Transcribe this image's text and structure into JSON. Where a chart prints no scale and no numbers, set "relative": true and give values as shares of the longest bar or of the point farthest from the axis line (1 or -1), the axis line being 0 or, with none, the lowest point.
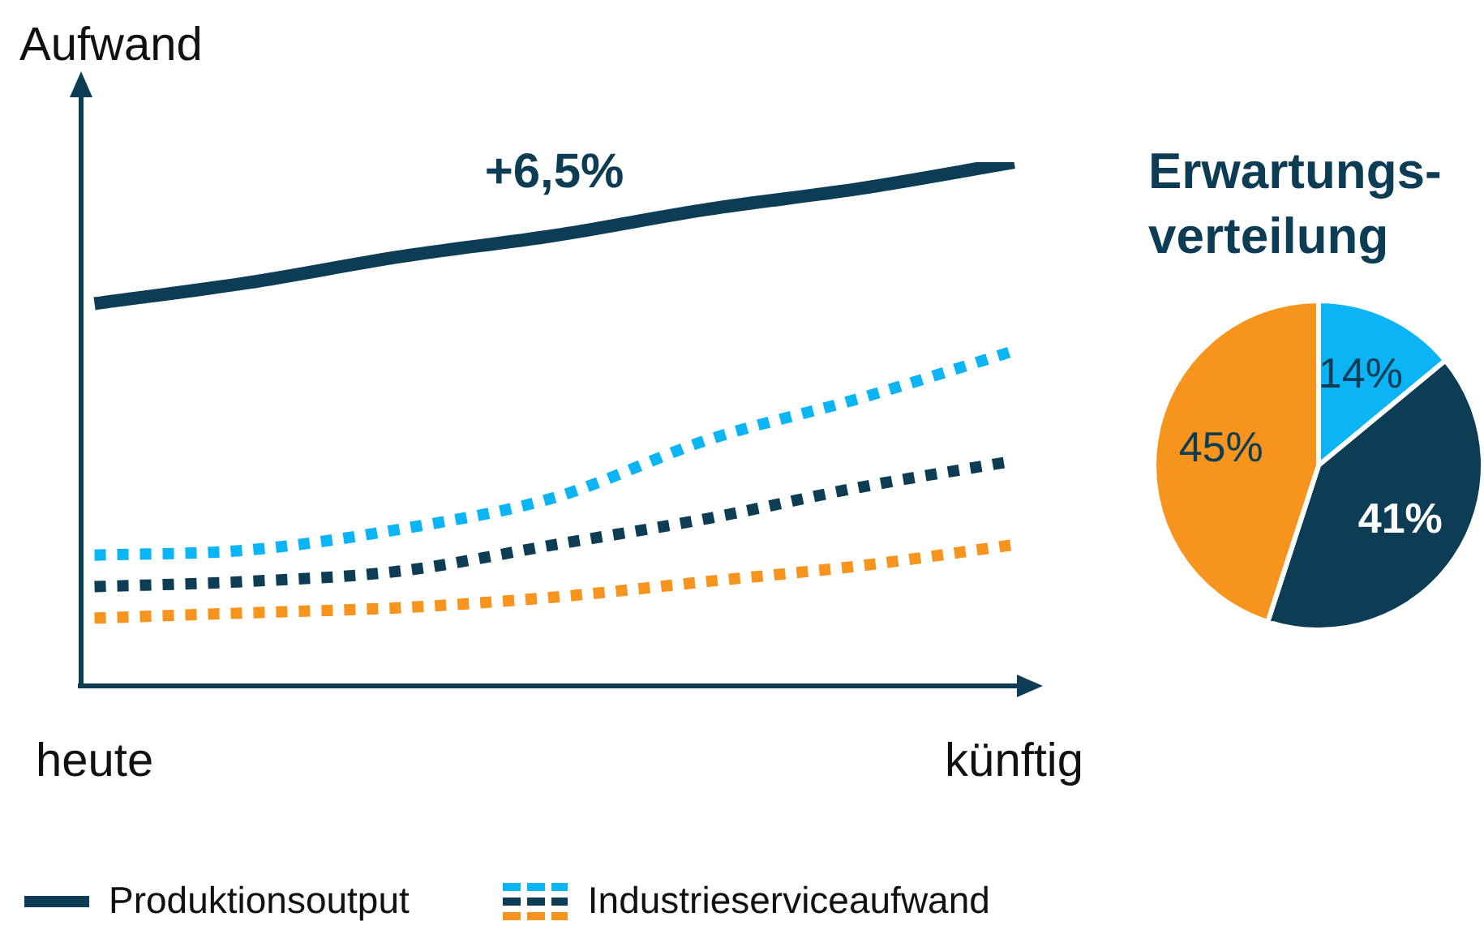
{
  "chart_data": [
    {
      "type": "line",
      "ylabel": "Aufwand",
      "categories": [
        "heute",
        null,
        null,
        null,
        null,
        null,
        "künftig"
      ],
      "relative": true,
      "tick_labels": "x",
      "legend": "bottom",
      "annotations": [
        "+6,5%"
      ],
      "series": [
        {
          "name": "Produktionsoutput",
          "color": "#0d3c55",
          "line_style": "solid",
          "values": [
            0.73,
            0.77,
            0.82,
            0.86,
            0.91,
            0.95,
            1
          ]
        },
        {
          "name": "Industrieserviceaufwand",
          "color": "#0bb4f4",
          "line_style": "dotted",
          "values": [
            0.25,
            0.26,
            0.3,
            0.36,
            0.47,
            0.55,
            0.64
          ]
        },
        {
          "color": "#0d3c55",
          "line_style": "dotted",
          "values": [
            0.19,
            0.2,
            0.22,
            0.27,
            0.32,
            0.38,
            0.43
          ]
        },
        {
          "color": "#f7941d",
          "line_style": "dotted",
          "values": [
            0.13,
            0.14,
            0.15,
            0.17,
            0.2,
            0.23,
            0.27
          ]
        }
      ]
    },
    {
      "type": "pie",
      "title": "Erwartungs-\nverteilung",
      "categories": [
        null,
        null,
        null
      ],
      "values": [
        14,
        41,
        45
      ],
      "colors": [
        "#0bb4f4",
        "#0d3c55",
        "#f7941d"
      ],
      "value_labels": [
        "14%",
        "41%",
        "45%"
      ]
    }
  ]
}
